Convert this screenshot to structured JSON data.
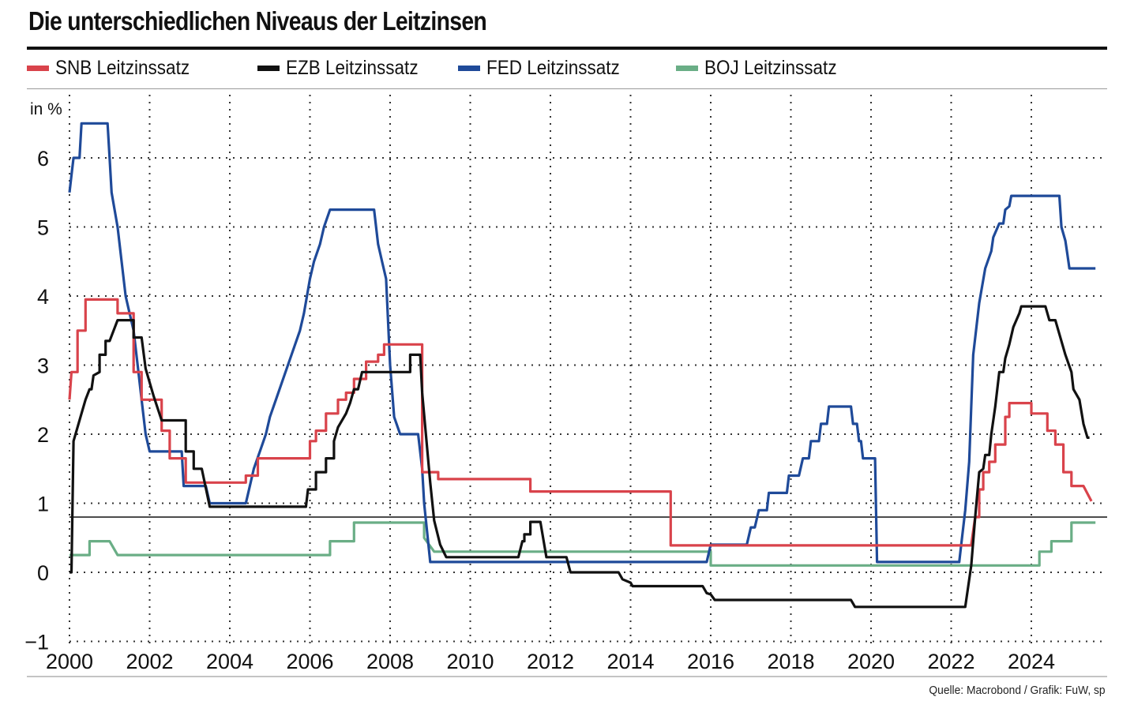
{
  "title": "Die unterschiedlichen Niveaus der Leitzinsen",
  "source": "Quelle: Macrobond / Grafik: FuW, sp",
  "legend": [
    {
      "label": "SNB Leitzinssatz",
      "color": "#d9434b"
    },
    {
      "label": "EZB Leitzinssatz",
      "color": "#111111"
    },
    {
      "label": "FED Leitzinssatz",
      "color": "#1f4a99"
    },
    {
      "label": "BOJ Leitzinssatz",
      "color": "#6aae86"
    }
  ],
  "chart_data": {
    "type": "line",
    "ylabel": "in %",
    "ylim": [
      -1,
      6.5
    ],
    "yticks": [
      -1,
      0,
      1,
      2,
      3,
      4,
      5,
      6
    ],
    "xlim": [
      2000,
      2025.8
    ],
    "xticks": [
      2000,
      2002,
      2004,
      2006,
      2008,
      2010,
      2012,
      2014,
      2016,
      2018,
      2020,
      2022,
      2024
    ],
    "grid": true,
    "reference_line": 0.8,
    "legend_position": "top",
    "series": [
      {
        "name": "SNB Leitzinssatz",
        "color": "#d9434b",
        "points": [
          [
            2000,
            2.5
          ],
          [
            2000.05,
            2.9
          ],
          [
            2000.2,
            2.9
          ],
          [
            2000.2,
            3.5
          ],
          [
            2000.4,
            3.5
          ],
          [
            2000.4,
            3.95
          ],
          [
            2001.2,
            3.95
          ],
          [
            2001.2,
            3.75
          ],
          [
            2001.6,
            3.75
          ],
          [
            2001.6,
            2.9
          ],
          [
            2001.8,
            2.9
          ],
          [
            2001.8,
            2.5
          ],
          [
            2002.3,
            2.5
          ],
          [
            2002.3,
            2.05
          ],
          [
            2002.5,
            2.05
          ],
          [
            2002.5,
            1.65
          ],
          [
            2002.9,
            1.65
          ],
          [
            2002.9,
            1.3
          ],
          [
            2004.4,
            1.3
          ],
          [
            2004.4,
            1.4
          ],
          [
            2004.7,
            1.4
          ],
          [
            2004.7,
            1.65
          ],
          [
            2006.0,
            1.65
          ],
          [
            2006.0,
            1.9
          ],
          [
            2006.15,
            1.9
          ],
          [
            2006.15,
            2.05
          ],
          [
            2006.4,
            2.05
          ],
          [
            2006.4,
            2.3
          ],
          [
            2006.7,
            2.3
          ],
          [
            2006.7,
            2.5
          ],
          [
            2006.9,
            2.5
          ],
          [
            2006.9,
            2.6
          ],
          [
            2007.1,
            2.6
          ],
          [
            2007.1,
            2.8
          ],
          [
            2007.4,
            2.8
          ],
          [
            2007.4,
            3.05
          ],
          [
            2007.7,
            3.05
          ],
          [
            2007.7,
            3.15
          ],
          [
            2007.85,
            3.15
          ],
          [
            2007.85,
            3.3
          ],
          [
            2008.8,
            3.3
          ],
          [
            2008.8,
            1.45
          ],
          [
            2009.2,
            1.45
          ],
          [
            2009.2,
            1.35
          ],
          [
            2011.5,
            1.35
          ],
          [
            2011.5,
            1.17
          ],
          [
            2015.0,
            1.17
          ],
          [
            2015.0,
            0.39
          ],
          [
            2022.5,
            0.39
          ],
          [
            2022.5,
            0.4
          ],
          [
            2022.6,
            0.8
          ],
          [
            2022.7,
            0.8
          ],
          [
            2022.7,
            1.2
          ],
          [
            2022.8,
            1.2
          ],
          [
            2022.8,
            1.45
          ],
          [
            2022.95,
            1.45
          ],
          [
            2022.95,
            1.6
          ],
          [
            2023.1,
            1.6
          ],
          [
            2023.1,
            1.85
          ],
          [
            2023.35,
            1.85
          ],
          [
            2023.35,
            2.25
          ],
          [
            2023.45,
            2.25
          ],
          [
            2023.45,
            2.45
          ],
          [
            2024.0,
            2.45
          ],
          [
            2024.0,
            2.3
          ],
          [
            2024.4,
            2.3
          ],
          [
            2024.4,
            2.05
          ],
          [
            2024.6,
            2.05
          ],
          [
            2024.6,
            1.85
          ],
          [
            2024.8,
            1.85
          ],
          [
            2024.8,
            1.45
          ],
          [
            2025.0,
            1.45
          ],
          [
            2025.0,
            1.25
          ],
          [
            2025.3,
            1.25
          ],
          [
            2025.5,
            1.03
          ]
        ]
      },
      {
        "name": "EZB Leitzinssatz",
        "color": "#111111",
        "points": [
          [
            2000,
            0.0
          ],
          [
            2000.05,
            0.0
          ],
          [
            2000.1,
            1.9
          ],
          [
            2000.3,
            2.3
          ],
          [
            2000.4,
            2.5
          ],
          [
            2000.5,
            2.65
          ],
          [
            2000.55,
            2.65
          ],
          [
            2000.6,
            2.85
          ],
          [
            2000.75,
            2.9
          ],
          [
            2000.75,
            3.15
          ],
          [
            2000.9,
            3.15
          ],
          [
            2000.9,
            3.35
          ],
          [
            2001.0,
            3.35
          ],
          [
            2001.2,
            3.65
          ],
          [
            2001.6,
            3.65
          ],
          [
            2001.6,
            3.4
          ],
          [
            2001.8,
            3.4
          ],
          [
            2001.9,
            2.95
          ],
          [
            2002.1,
            2.55
          ],
          [
            2002.3,
            2.2
          ],
          [
            2002.9,
            2.2
          ],
          [
            2002.9,
            1.75
          ],
          [
            2003.1,
            1.75
          ],
          [
            2003.1,
            1.5
          ],
          [
            2003.3,
            1.5
          ],
          [
            2003.5,
            0.95
          ],
          [
            2005.9,
            0.95
          ],
          [
            2005.95,
            1.2
          ],
          [
            2006.15,
            1.2
          ],
          [
            2006.15,
            1.45
          ],
          [
            2006.4,
            1.45
          ],
          [
            2006.4,
            1.65
          ],
          [
            2006.6,
            1.65
          ],
          [
            2006.6,
            1.9
          ],
          [
            2006.7,
            2.1
          ],
          [
            2006.9,
            2.3
          ],
          [
            2007.0,
            2.45
          ],
          [
            2007.1,
            2.65
          ],
          [
            2007.2,
            2.65
          ],
          [
            2007.3,
            2.9
          ],
          [
            2008.5,
            2.9
          ],
          [
            2008.5,
            3.15
          ],
          [
            2008.75,
            3.15
          ],
          [
            2008.8,
            2.6
          ],
          [
            2009.0,
            1.3
          ],
          [
            2009.1,
            0.75
          ],
          [
            2009.25,
            0.4
          ],
          [
            2009.4,
            0.22
          ],
          [
            2011.2,
            0.22
          ],
          [
            2011.3,
            0.45
          ],
          [
            2011.35,
            0.45
          ],
          [
            2011.35,
            0.55
          ],
          [
            2011.5,
            0.55
          ],
          [
            2011.5,
            0.73
          ],
          [
            2011.75,
            0.73
          ],
          [
            2011.9,
            0.22
          ],
          [
            2012.4,
            0.22
          ],
          [
            2012.5,
            0.0
          ],
          [
            2013.7,
            0.0
          ],
          [
            2013.8,
            -0.1
          ],
          [
            2014.0,
            -0.15
          ],
          [
            2014.05,
            -0.2
          ],
          [
            2015.8,
            -0.2
          ],
          [
            2015.9,
            -0.3
          ],
          [
            2016.0,
            -0.32
          ],
          [
            2016.1,
            -0.4
          ],
          [
            2019.5,
            -0.4
          ],
          [
            2019.6,
            -0.5
          ],
          [
            2022.35,
            -0.5
          ],
          [
            2022.5,
            0.1
          ],
          [
            2022.6,
            0.8
          ],
          [
            2022.7,
            1.45
          ],
          [
            2022.8,
            1.5
          ],
          [
            2022.85,
            1.7
          ],
          [
            2022.95,
            1.7
          ],
          [
            2023.0,
            2.0
          ],
          [
            2023.1,
            2.4
          ],
          [
            2023.2,
            2.9
          ],
          [
            2023.3,
            2.9
          ],
          [
            2023.35,
            3.1
          ],
          [
            2023.45,
            3.3
          ],
          [
            2023.55,
            3.55
          ],
          [
            2023.7,
            3.75
          ],
          [
            2023.75,
            3.85
          ],
          [
            2024.35,
            3.85
          ],
          [
            2024.45,
            3.65
          ],
          [
            2024.6,
            3.65
          ],
          [
            2024.85,
            3.15
          ],
          [
            2025.0,
            2.9
          ],
          [
            2025.05,
            2.65
          ],
          [
            2025.2,
            2.5
          ],
          [
            2025.3,
            2.15
          ],
          [
            2025.4,
            1.95
          ],
          [
            2025.45,
            1.95
          ]
        ]
      },
      {
        "name": "FED Leitzinssatz",
        "color": "#1f4a99",
        "points": [
          [
            2000,
            5.5
          ],
          [
            2000.05,
            5.75
          ],
          [
            2000.1,
            6.0
          ],
          [
            2000.25,
            6.0
          ],
          [
            2000.3,
            6.5
          ],
          [
            2000.95,
            6.5
          ],
          [
            2001.0,
            6.0
          ],
          [
            2001.05,
            5.5
          ],
          [
            2001.2,
            5.0
          ],
          [
            2001.3,
            4.5
          ],
          [
            2001.4,
            4.0
          ],
          [
            2001.5,
            3.75
          ],
          [
            2001.6,
            3.5
          ],
          [
            2001.7,
            3.0
          ],
          [
            2001.8,
            2.5
          ],
          [
            2001.9,
            2.0
          ],
          [
            2002.0,
            1.75
          ],
          [
            2002.8,
            1.75
          ],
          [
            2002.85,
            1.25
          ],
          [
            2003.4,
            1.25
          ],
          [
            2003.5,
            1.0
          ],
          [
            2004.4,
            1.0
          ],
          [
            2004.5,
            1.25
          ],
          [
            2004.6,
            1.5
          ],
          [
            2004.75,
            1.75
          ],
          [
            2004.9,
            2.0
          ],
          [
            2005.0,
            2.25
          ],
          [
            2005.15,
            2.5
          ],
          [
            2005.3,
            2.75
          ],
          [
            2005.45,
            3.0
          ],
          [
            2005.6,
            3.25
          ],
          [
            2005.75,
            3.5
          ],
          [
            2005.85,
            3.75
          ],
          [
            2006.0,
            4.25
          ],
          [
            2006.1,
            4.5
          ],
          [
            2006.25,
            4.75
          ],
          [
            2006.35,
            5.0
          ],
          [
            2006.5,
            5.25
          ],
          [
            2007.6,
            5.25
          ],
          [
            2007.7,
            4.75
          ],
          [
            2007.8,
            4.5
          ],
          [
            2007.9,
            4.25
          ],
          [
            2008.0,
            3.0
          ],
          [
            2008.1,
            2.25
          ],
          [
            2008.25,
            2.0
          ],
          [
            2008.7,
            2.0
          ],
          [
            2008.8,
            1.5
          ],
          [
            2008.85,
            1.0
          ],
          [
            2009.0,
            0.15
          ],
          [
            2015.9,
            0.15
          ],
          [
            2016.0,
            0.4
          ],
          [
            2016.9,
            0.4
          ],
          [
            2017.0,
            0.65
          ],
          [
            2017.1,
            0.65
          ],
          [
            2017.2,
            0.9
          ],
          [
            2017.4,
            0.9
          ],
          [
            2017.45,
            1.15
          ],
          [
            2017.9,
            1.15
          ],
          [
            2017.95,
            1.4
          ],
          [
            2018.2,
            1.4
          ],
          [
            2018.3,
            1.65
          ],
          [
            2018.45,
            1.65
          ],
          [
            2018.5,
            1.9
          ],
          [
            2018.7,
            1.9
          ],
          [
            2018.75,
            2.15
          ],
          [
            2018.9,
            2.15
          ],
          [
            2018.95,
            2.4
          ],
          [
            2019.5,
            2.4
          ],
          [
            2019.55,
            2.15
          ],
          [
            2019.65,
            2.15
          ],
          [
            2019.7,
            1.9
          ],
          [
            2019.75,
            1.9
          ],
          [
            2019.8,
            1.65
          ],
          [
            2020.1,
            1.65
          ],
          [
            2020.15,
            0.15
          ],
          [
            2022.2,
            0.15
          ],
          [
            2022.25,
            0.4
          ],
          [
            2022.35,
            0.9
          ],
          [
            2022.45,
            1.6
          ],
          [
            2022.5,
            2.4
          ],
          [
            2022.55,
            3.15
          ],
          [
            2022.7,
            3.9
          ],
          [
            2022.85,
            4.4
          ],
          [
            2023.0,
            4.65
          ],
          [
            2023.05,
            4.85
          ],
          [
            2023.2,
            5.05
          ],
          [
            2023.3,
            5.05
          ],
          [
            2023.35,
            5.25
          ],
          [
            2023.45,
            5.3
          ],
          [
            2023.5,
            5.45
          ],
          [
            2024.7,
            5.45
          ],
          [
            2024.75,
            5.0
          ],
          [
            2024.85,
            4.8
          ],
          [
            2024.9,
            4.6
          ],
          [
            2024.95,
            4.4
          ],
          [
            2025.6,
            4.4
          ]
        ]
      },
      {
        "name": "BOJ Leitzinssatz",
        "color": "#6aae86",
        "points": [
          [
            2000,
            0.25
          ],
          [
            2000.5,
            0.25
          ],
          [
            2000.5,
            0.45
          ],
          [
            2001.0,
            0.45
          ],
          [
            2001.2,
            0.25
          ],
          [
            2006.5,
            0.25
          ],
          [
            2006.5,
            0.45
          ],
          [
            2007.1,
            0.45
          ],
          [
            2007.1,
            0.72
          ],
          [
            2008.85,
            0.72
          ],
          [
            2008.85,
            0.5
          ],
          [
            2009.1,
            0.3
          ],
          [
            2016.0,
            0.3
          ],
          [
            2016.0,
            0.1
          ],
          [
            2024.2,
            0.1
          ],
          [
            2024.2,
            0.3
          ],
          [
            2024.5,
            0.3
          ],
          [
            2024.5,
            0.45
          ],
          [
            2025.0,
            0.45
          ],
          [
            2025.0,
            0.72
          ],
          [
            2025.6,
            0.72
          ]
        ]
      }
    ]
  }
}
